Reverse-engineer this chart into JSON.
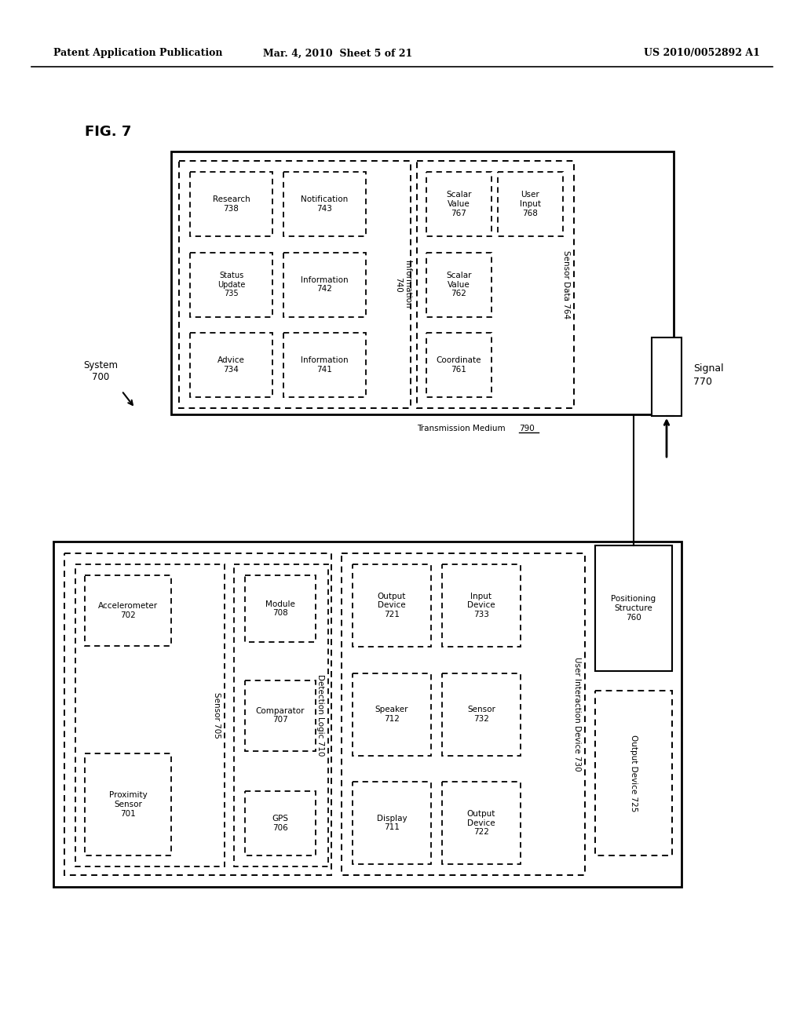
{
  "header_left": "Patent Application Publication",
  "header_mid": "Mar. 4, 2010  Sheet 5 of 21",
  "header_right": "US 2010/0052892 A1",
  "bg_color": "#ffffff"
}
